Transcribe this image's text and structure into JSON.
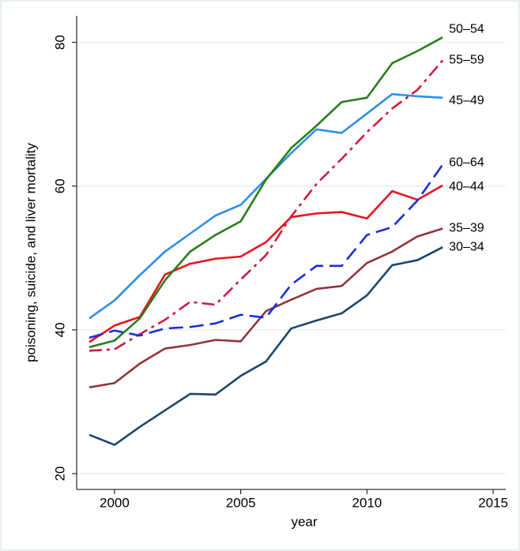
{
  "chart_data": {
    "type": "line",
    "x": [
      1999,
      2000,
      2001,
      2002,
      2003,
      2004,
      2005,
      2006,
      2007,
      2008,
      2009,
      2010,
      2011,
      2012,
      2013
    ],
    "xlabel": "year",
    "ylabel": "poisoning, suicide, and liver mortality",
    "xlim": [
      1998.5,
      2015.5
    ],
    "xticks": [
      2000,
      2005,
      2010,
      2015
    ],
    "ylim": [
      17.8,
      83.7
    ],
    "yticks": [
      20,
      40,
      60,
      80
    ],
    "grid": true,
    "series": [
      {
        "name": "30–34",
        "color": "#1a476f",
        "dash": "solid",
        "values": [
          25.4,
          24.0,
          26.5,
          28.8,
          31.1,
          31.0,
          33.6,
          35.6,
          40.2,
          41.3,
          42.3,
          44.8,
          49.0,
          49.7,
          51.5
        ]
      },
      {
        "name": "35–39",
        "color": "#90353b",
        "dash": "solid",
        "values": [
          32.0,
          32.6,
          35.3,
          37.4,
          37.9,
          38.6,
          38.4,
          42.6,
          44.2,
          45.7,
          46.1,
          49.3,
          50.9,
          53.0,
          54.1
        ]
      },
      {
        "name": "40–44",
        "color": "#e8141c",
        "dash": "solid",
        "values": [
          38.3,
          40.6,
          41.8,
          47.7,
          49.2,
          49.9,
          50.2,
          52.2,
          55.7,
          56.2,
          56.4,
          55.5,
          59.3,
          58.1,
          60.1
        ]
      },
      {
        "name": "45–49",
        "color": "#2d8fe8",
        "dash": "solid",
        "values": [
          41.6,
          44.1,
          47.6,
          50.9,
          53.4,
          55.9,
          57.4,
          61.0,
          64.6,
          67.9,
          67.4,
          70.1,
          72.8,
          72.5,
          72.3
        ]
      },
      {
        "name": "50–54",
        "color": "#2a7d1d",
        "dash": "solid",
        "values": [
          37.6,
          38.5,
          41.6,
          46.9,
          50.9,
          53.2,
          55.1,
          60.9,
          65.3,
          68.4,
          71.7,
          72.3,
          77.1,
          78.8,
          80.7
        ]
      },
      {
        "name": "55–59",
        "color": "#d01c3c",
        "dash": "dashdot",
        "values": [
          37.1,
          37.3,
          39.4,
          41.4,
          43.9,
          43.5,
          47.0,
          50.4,
          55.8,
          60.3,
          63.8,
          67.5,
          70.8,
          73.4,
          77.5
        ]
      },
      {
        "name": "60–64",
        "color": "#1a2ee0",
        "dash": "dash",
        "values": [
          38.9,
          39.9,
          39.2,
          40.2,
          40.4,
          40.9,
          42.1,
          41.7,
          46.3,
          48.9,
          48.9,
          53.2,
          54.3,
          58.0,
          63.0
        ]
      }
    ]
  }
}
